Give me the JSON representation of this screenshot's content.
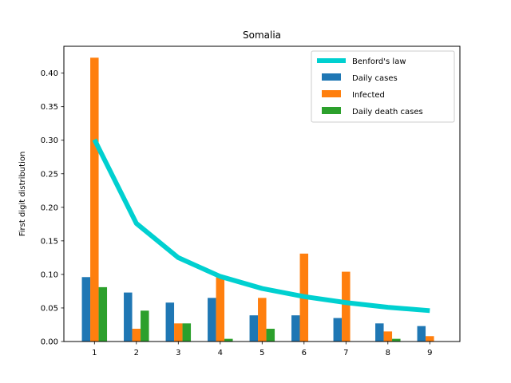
{
  "chart_data": {
    "type": "bar",
    "title": "Somalia",
    "xlabel": "",
    "ylabel": "First digit distribution",
    "categories": [
      "1",
      "2",
      "3",
      "4",
      "5",
      "6",
      "7",
      "8",
      "9"
    ],
    "ylim": [
      0,
      0.44
    ],
    "yticks": [
      "0.00",
      "0.05",
      "0.10",
      "0.15",
      "0.20",
      "0.25",
      "0.30",
      "0.35",
      "0.40"
    ],
    "grid": false,
    "legend_position": "top-right",
    "series": [
      {
        "name": "Daily cases",
        "kind": "bar",
        "color": "#1f77b4",
        "values": [
          0.096,
          0.073,
          0.058,
          0.065,
          0.039,
          0.039,
          0.035,
          0.027,
          0.023
        ]
      },
      {
        "name": "Infected",
        "kind": "bar",
        "color": "#ff7f0e",
        "values": [
          0.423,
          0.019,
          0.027,
          0.096,
          0.065,
          0.131,
          0.104,
          0.015,
          0.008
        ]
      },
      {
        "name": "Daily death cases",
        "kind": "bar",
        "color": "#2ca02c",
        "values": [
          0.081,
          0.046,
          0.027,
          0.004,
          0.019,
          0.0,
          0.0,
          0.004,
          0.0
        ]
      }
    ],
    "line": {
      "name": "Benford's law",
      "kind": "line",
      "color": "#00d0d0",
      "values": [
        0.301,
        0.176,
        0.125,
        0.097,
        0.079,
        0.067,
        0.058,
        0.051,
        0.046
      ]
    }
  }
}
